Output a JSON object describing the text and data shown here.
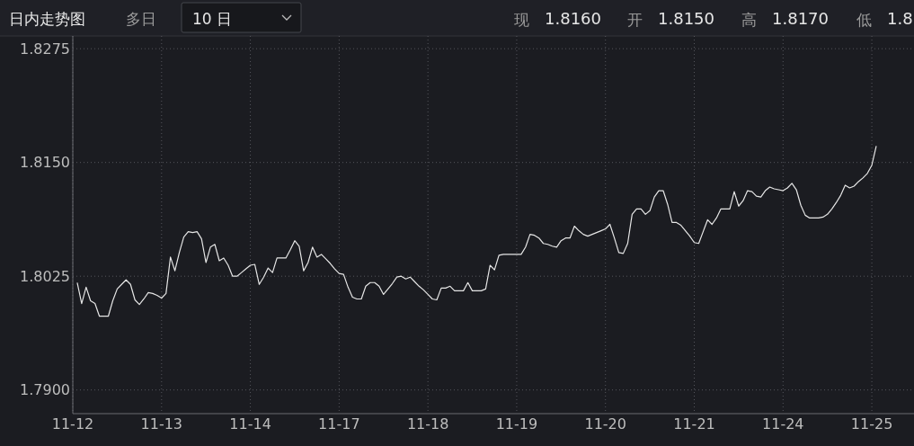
{
  "chart_data": {
    "type": "line",
    "title": "日内走势图",
    "annotations": [
      "多日",
      "10 日",
      "现",
      "1.8160",
      "开",
      "1.8150",
      "高",
      "1.8170",
      "低",
      "1.8"
    ],
    "categories": [
      "11-12",
      null,
      null,
      null,
      null,
      null,
      null,
      null,
      null,
      null,
      null,
      null,
      null,
      null,
      null,
      null,
      null,
      null,
      null,
      null,
      "11-13",
      null,
      null,
      null,
      null,
      null,
      null,
      null,
      null,
      null,
      null,
      null,
      null,
      null,
      null,
      null,
      null,
      null,
      null,
      null,
      "11-14",
      null,
      null,
      null,
      null,
      null,
      null,
      null,
      null,
      null,
      null,
      null,
      null,
      null,
      null,
      null,
      null,
      null,
      null,
      null,
      "11-17",
      null,
      null,
      null,
      null,
      null,
      null,
      null,
      null,
      null,
      null,
      null,
      null,
      null,
      null,
      null,
      null,
      null,
      null,
      null,
      "11-18",
      null,
      null,
      null,
      null,
      null,
      null,
      null,
      null,
      null,
      null,
      null,
      null,
      null,
      null,
      null,
      null,
      null,
      null,
      null,
      "11-19",
      null,
      null,
      null,
      null,
      null,
      null,
      null,
      null,
      null,
      null,
      null,
      null,
      null,
      null,
      null,
      null,
      null,
      null,
      null,
      "11-20",
      null,
      null,
      null,
      null,
      null,
      null,
      null,
      null,
      null,
      null,
      null,
      null,
      null,
      null,
      null,
      null,
      null,
      null,
      null,
      "11-21",
      null,
      null,
      null,
      null,
      null,
      null,
      null,
      null,
      null,
      null,
      null,
      null,
      null,
      null,
      null,
      null,
      null,
      null,
      null,
      "11-24",
      null,
      null,
      null,
      null,
      null,
      null,
      null,
      null,
      null,
      null,
      null,
      null,
      null,
      null,
      null,
      null,
      null,
      null,
      null,
      "11-25",
      null,
      null,
      null,
      null,
      null,
      null,
      null,
      null,
      null
    ],
    "ylim": [
      1.7874,
      1.8289
    ],
    "yticks": [
      {
        "value": 1.79,
        "label": "1.7900"
      },
      {
        "value": 1.8025,
        "label": "1.8025"
      },
      {
        "value": 1.815,
        "label": "1.8150"
      },
      {
        "value": 1.8275,
        "label": "1.8275"
      }
    ],
    "grid": true,
    "marker": "none",
    "line_style": "solid",
    "series": [
      {
        "color": "#e6e6e6",
        "values": [
          null,
          1.8018,
          1.7995,
          1.8013,
          1.7998,
          1.7995,
          1.7981,
          1.7981,
          1.7981,
          1.7998,
          1.8011,
          1.8016,
          1.8021,
          1.8016,
          1.7999,
          1.7994,
          1.8,
          1.8007,
          1.8006,
          1.8004,
          1.8001,
          1.8006,
          1.8046,
          1.8031,
          1.8051,
          1.8068,
          1.8074,
          1.8073,
          1.8074,
          1.8066,
          1.804,
          1.8057,
          1.806,
          1.8042,
          1.8045,
          1.8037,
          1.8025,
          1.8025,
          1.8029,
          1.8033,
          1.8037,
          1.8038,
          1.8016,
          1.8024,
          1.8034,
          1.8029,
          1.8045,
          1.8045,
          1.8045,
          1.8054,
          1.8064,
          1.8058,
          1.8031,
          1.804,
          1.8057,
          1.8046,
          1.8049,
          1.8044,
          1.8039,
          1.8033,
          1.8028,
          1.8027,
          1.8013,
          1.8002,
          1.8,
          1.8,
          1.8014,
          1.8018,
          1.8018,
          1.8014,
          1.8005,
          1.8011,
          1.8017,
          1.8024,
          1.8025,
          1.8022,
          1.8024,
          1.8019,
          1.8014,
          1.801,
          1.8005,
          1.8,
          1.7999,
          1.8012,
          1.8012,
          1.8014,
          1.8009,
          1.8009,
          1.8009,
          1.8018,
          1.8009,
          1.8009,
          1.8009,
          1.8011,
          1.8037,
          1.8032,
          1.8048,
          1.8049,
          1.8049,
          1.8049,
          1.8049,
          1.8049,
          1.8057,
          1.8071,
          1.807,
          1.8067,
          1.8061,
          1.806,
          1.8058,
          1.8057,
          1.8064,
          1.8067,
          1.8067,
          1.808,
          1.8075,
          1.8071,
          1.8069,
          1.8071,
          1.8073,
          1.8075,
          1.8077,
          1.8082,
          1.8067,
          1.8051,
          1.805,
          1.8061,
          1.8093,
          1.8099,
          1.8099,
          1.8093,
          1.8097,
          1.8112,
          1.8119,
          1.8119,
          1.8104,
          1.8084,
          1.8084,
          1.8081,
          1.8075,
          1.8069,
          1.8062,
          1.8061,
          1.8074,
          1.8087,
          1.8082,
          1.8089,
          1.8099,
          1.8099,
          1.8099,
          1.8118,
          1.8102,
          1.8108,
          1.8119,
          1.8118,
          1.8113,
          1.8112,
          1.8119,
          1.8123,
          1.8121,
          1.812,
          1.8119,
          1.8122,
          1.8127,
          1.812,
          1.8103,
          1.8092,
          1.8089,
          1.8089,
          1.8089,
          1.809,
          1.8093,
          1.8099,
          1.8106,
          1.8114,
          1.8125,
          1.8122,
          1.8124,
          1.8129,
          1.8133,
          1.8138,
          1.8147,
          1.8168,
          null,
          null,
          null,
          null,
          null,
          null,
          null,
          null
        ]
      }
    ]
  }
}
